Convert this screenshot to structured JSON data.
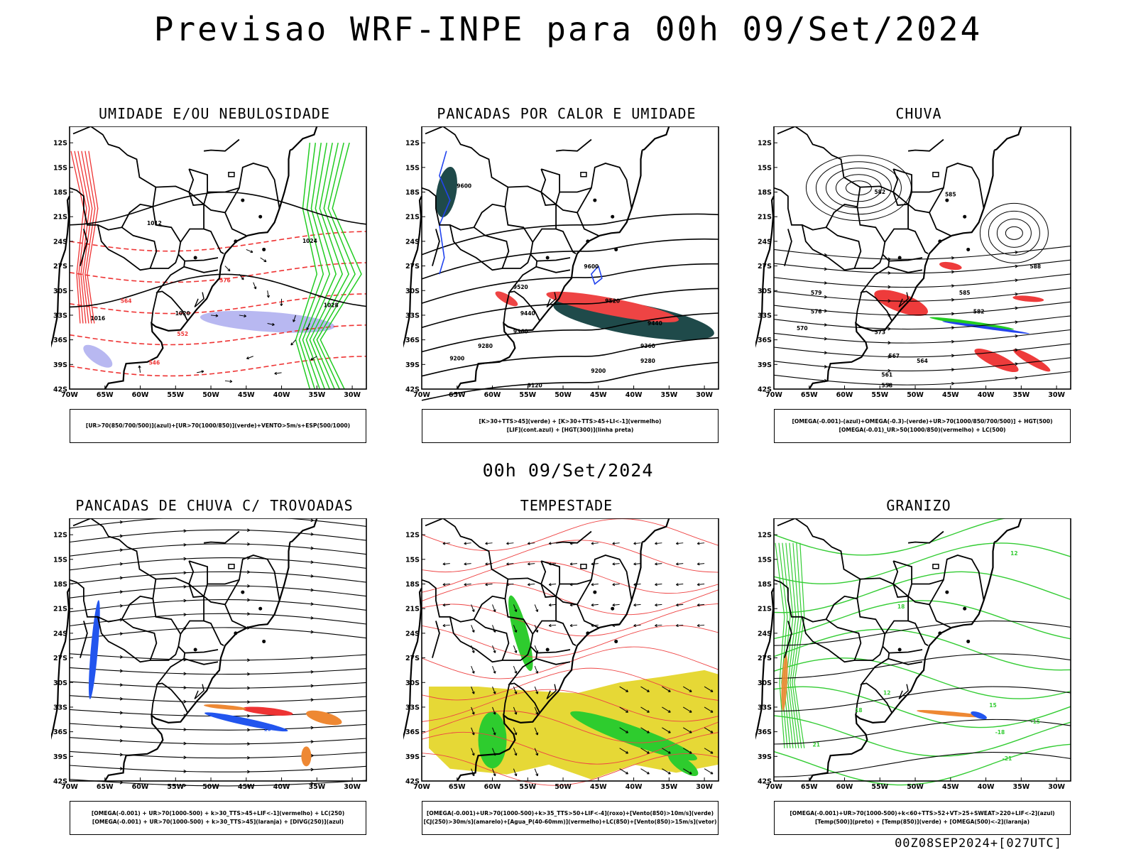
{
  "header": {
    "title": "Previsao WRF-INPE  para 00h 09/Set/2024"
  },
  "mid_stamp": "00h 09/Set/2024",
  "footer_stamp": "00Z08SEP2024+[027UTC]",
  "axes": {
    "lat_labels": [
      "12S",
      "15S",
      "18S",
      "21S",
      "24S",
      "27S",
      "30S",
      "33S",
      "36S",
      "39S",
      "42S"
    ],
    "lon_labels": [
      "70W",
      "65W",
      "60W",
      "55W",
      "50W",
      "45W",
      "40W",
      "35W",
      "30W"
    ]
  },
  "panels": [
    {
      "id": "umidade",
      "title": "UMIDADE E/OU NEBULOSIDADE",
      "legend": [
        "[UR>70(850/700/500)](azul)+[UR>70(1000/850)](verde)+VENTO>5m/s+ESP(500/1000)"
      ],
      "contour_labels": [
        "1012",
        "1016",
        "1020",
        "1024",
        "1028",
        "552",
        "576",
        "564",
        "546"
      ],
      "colors": {
        "fill_blue": "#b0b0ef",
        "contour_green": "#22cc22",
        "contour_red": "#ee3333",
        "isobar": "#000000"
      }
    },
    {
      "id": "pancadas-calor",
      "title": "PANCADAS POR CALOR E UMIDADE",
      "legend": [
        "[K>30+TTS>45](verde) + [K>30+TTS>45+LI<-1](vermelho)",
        "[LIF](cont.azul) + [HGT(300)](linha preta)"
      ],
      "contour_labels": [
        "9600",
        "9520",
        "9440",
        "9360",
        "9280",
        "9200",
        "9120"
      ],
      "colors": {
        "fill_green": "#1f4a4a",
        "fill_red": "#ee4444",
        "contour_blue": "#2244ee"
      }
    },
    {
      "id": "chuva",
      "title": "CHUVA",
      "legend": [
        "[OMEGA(-0.001)-(azul)+OMEGA(-0.3)-(verde)+UR>70(1000/850/700/500)] + HGT(500)",
        "[OMEGA(-0.01)_UR>50(1000/850)(vermelho) + LC(500)"
      ],
      "contour_labels": [
        "588",
        "585",
        "582",
        "579",
        "576",
        "573",
        "570",
        "567",
        "564",
        "561",
        "558"
      ],
      "colors": {
        "fill_red": "#ee3b3b",
        "fill_green": "#22cc22",
        "fill_blue": "#2244ee"
      }
    },
    {
      "id": "trovoadas",
      "title": "PANCADAS DE CHUVA C/ TROVOADAS",
      "legend": [
        "[OMEGA(-0.001) + UR>70(1000-500) + k>30_TTS>45+LIF<-1](vermelho) + LC(250)",
        "[OMEGA(-0.001) + UR>70(1000-500) + k>30_TTS>45](laranja) + [DIVG(250)](azul)"
      ],
      "contour_labels": [
        "10"
      ],
      "colors": {
        "fill_blue": "#2255ee",
        "fill_orange": "#ee8833",
        "fill_red": "#ee3333"
      }
    },
    {
      "id": "tempestade",
      "title": "TEMPESTADE",
      "legend": [
        "[OMEGA(-0.001)+UR>70(1000-500)+k>35_TTS>50+LIF<-4](roxo)+[Vento(850)>10m/s](verde)",
        "[CJ(250)>30m/s](amarelo)+[Agua_P(40-60mm)](vermelho)+LC(850)+[Vento(850)>15m/s](vetor)"
      ],
      "contour_labels": [],
      "colors": {
        "fill_yellow": "#e6d836",
        "fill_green": "#2ecc2e",
        "contour_red": "#ee4444"
      }
    },
    {
      "id": "granizo",
      "title": "GRANIZO",
      "legend": [
        "[OMEGA(-0.001)+UR>70(1000-500)+k<60+TTS>52+VT>25+SWEAT>220+LIF<-2](azul)",
        "[Temp(500)](preto) + [Temp(850)](verde) + [OMEGA(500)<-2](laranja)"
      ],
      "contour_labels": [
        "12",
        "15",
        "18",
        "21",
        "-15",
        "-18",
        "-21"
      ],
      "colors": {
        "contour_green": "#33cc33",
        "contour_black": "#000000",
        "fill_orange": "#ee8833",
        "fill_blue": "#2255ee"
      }
    }
  ]
}
